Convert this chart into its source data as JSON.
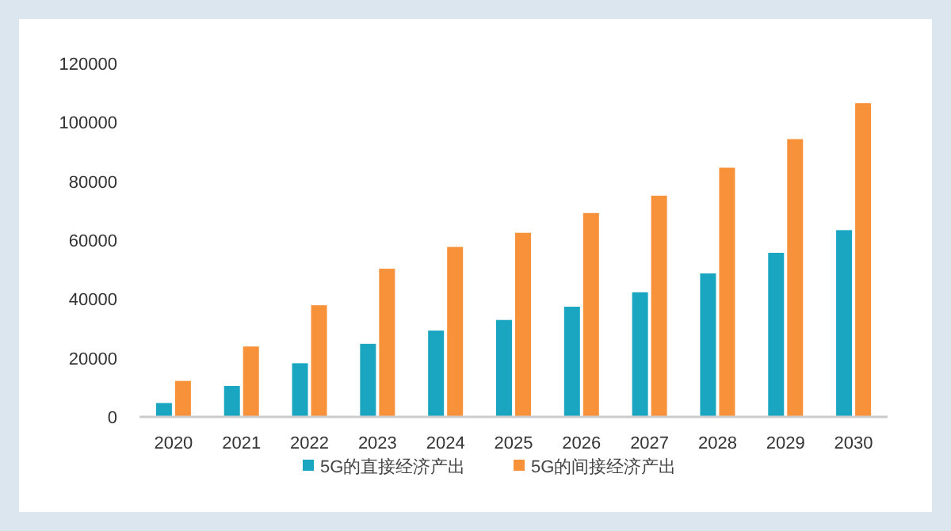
{
  "chart_data": {
    "type": "bar",
    "categories": [
      "2020",
      "2021",
      "2022",
      "2023",
      "2024",
      "2025",
      "2026",
      "2027",
      "2028",
      "2029",
      "2030"
    ],
    "series": [
      {
        "name": "5G的直接经济产出",
        "color": "#1aa6c0",
        "values": [
          4700,
          10500,
          18200,
          24800,
          29300,
          32900,
          37400,
          42300,
          48700,
          55700,
          63400
        ]
      },
      {
        "name": "5G的间接经济产出",
        "color": "#f7923a",
        "values": [
          12200,
          23900,
          37900,
          50300,
          57700,
          62500,
          69200,
          75100,
          84600,
          94300,
          106500
        ]
      }
    ],
    "ylim": [
      0,
      120000
    ],
    "yticks": [
      0,
      20000,
      40000,
      60000,
      80000,
      100000,
      120000
    ],
    "grid": false,
    "legend": "bottom"
  }
}
